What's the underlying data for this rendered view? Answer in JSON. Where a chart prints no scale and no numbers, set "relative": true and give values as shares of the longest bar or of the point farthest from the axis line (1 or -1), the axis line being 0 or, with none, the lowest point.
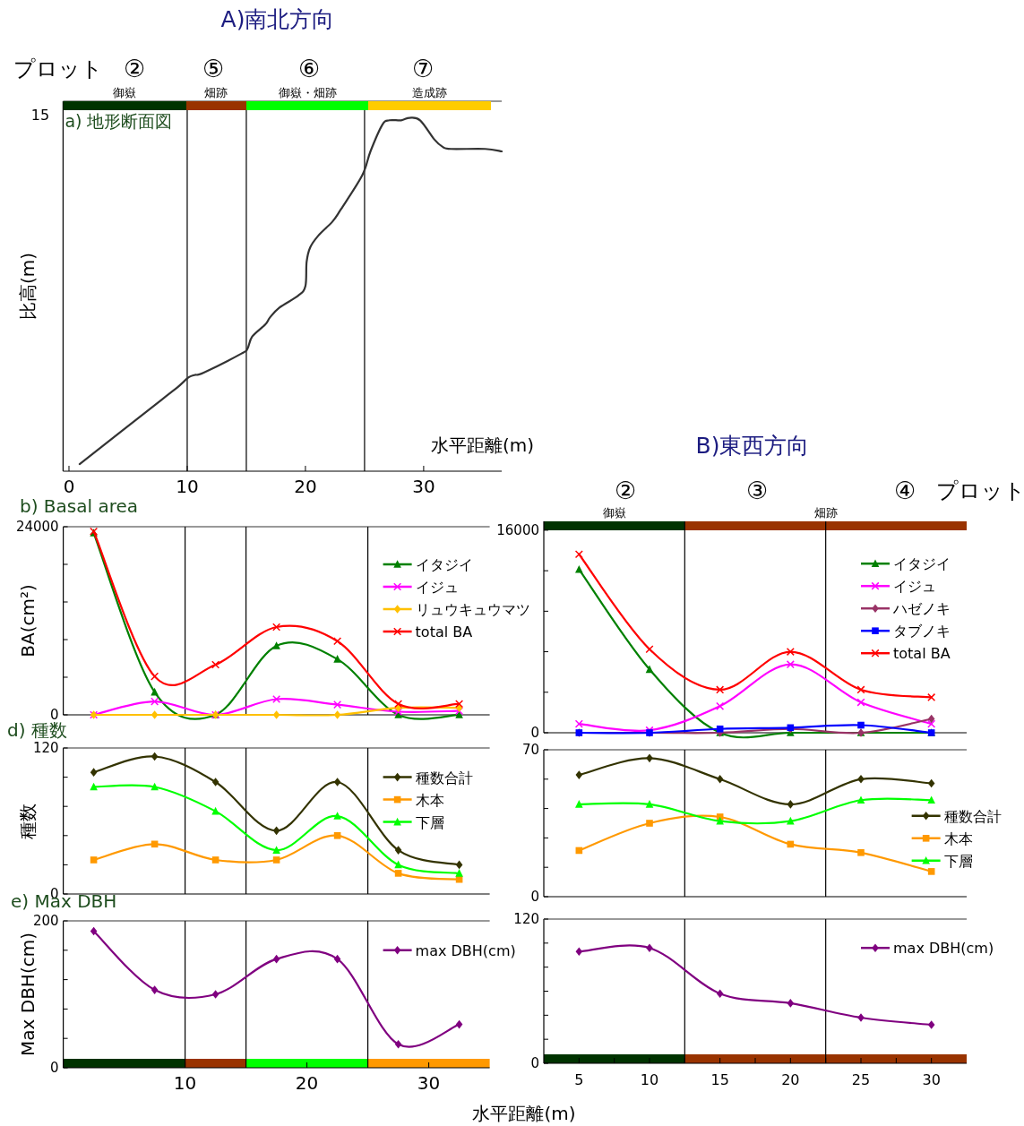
{
  "chart_data": [
    {
      "type": "line",
      "title": "A)南北方向",
      "subtitle": "a) 地形断面図",
      "xlabel": "水平距離(m)",
      "ylabel": "比高(m)",
      "x": [
        0.9,
        7.9,
        9.2,
        10.1,
        10.6,
        11.4,
        14.6,
        15.1,
        15.5,
        16.6,
        17.0,
        17.8,
        19.4,
        20.0,
        20.1,
        20.4,
        21.1,
        22.3,
        23.0,
        24.8,
        25.5,
        26.5,
        27.1,
        28.1,
        28.8,
        29.7,
        30.9,
        31.6,
        32.3,
        35.2,
        36.6
      ],
      "series": [
        {
          "color": "#333333",
          "values": [
            0.02,
            0.204,
            0.238,
            0.265,
            0.272,
            0.279,
            0.333,
            0.347,
            0.381,
            0.415,
            0.435,
            0.463,
            0.497,
            0.524,
            0.592,
            0.633,
            0.667,
            0.707,
            0.741,
            0.837,
            0.905,
            0.98,
            0.993,
            0.993,
            1,
            0.993,
            0.939,
            0.918,
            0.912,
            0.912,
            0.905
          ]
        }
      ],
      "relative": true,
      "xlim": [
        -0.5,
        36.6
      ],
      "xticks": [
        0,
        10,
        20,
        30
      ],
      "ref_lines": [
        {
          "axis": "x",
          "value": 10
        },
        {
          "axis": "x",
          "value": 15
        },
        {
          "axis": "x",
          "value": 25
        }
      ],
      "annotations": [
        "15",
        "プロット",
        "②",
        "⑤",
        "⑥",
        "⑦",
        "御嶽",
        "畑跡",
        "御嶽・畑跡",
        "造成跡"
      ]
    },
    {
      "type": "line",
      "title": "b) Basal area",
      "ylabel": "BA(cm²)",
      "x": [
        2.5,
        7.5,
        12.5,
        17.5,
        22.5,
        27.5,
        32.5
      ],
      "xlim": [
        0,
        35
      ],
      "ylim": [
        0,
        24000
      ],
      "yticks": [
        0,
        {
          "value": 4800,
          "label": null
        },
        {
          "value": 9600,
          "label": null
        },
        {
          "value": 14400,
          "label": null
        },
        {
          "value": 19200,
          "label": null
        },
        24000
      ],
      "tick_labels": "y",
      "legend": "top right",
      "ref_lines": [
        {
          "axis": "x",
          "value": 10
        },
        {
          "axis": "x",
          "value": 15
        },
        {
          "axis": "x",
          "value": 25
        }
      ],
      "series": [
        {
          "name": "イタジイ",
          "color": "#008000",
          "marker": "triangle",
          "values": [
            23200,
            2900,
            0,
            8800,
            7100,
            0,
            0
          ]
        },
        {
          "name": "イジュ",
          "color": "#ff00ff",
          "marker": "cross",
          "values": [
            0,
            1700,
            0,
            2000,
            1300,
            400,
            500
          ]
        },
        {
          "name": "リュウキュウマツ",
          "color": "#ffc000",
          "marker": "diamond",
          "values": [
            0,
            0,
            0,
            0,
            0,
            900,
            900
          ]
        },
        {
          "name": "total BA",
          "color": "#ff0000",
          "marker": "cross",
          "values": [
            23400,
            4900,
            6400,
            11200,
            9400,
            1400,
            1400
          ]
        }
      ]
    },
    {
      "type": "line",
      "title": "d) 種数",
      "ylabel": "種数",
      "x": [
        2.5,
        7.5,
        12.5,
        17.5,
        22.5,
        27.5,
        32.5
      ],
      "xlim": [
        0,
        35
      ],
      "ylim": [
        0,
        120
      ],
      "yticks": [
        0,
        {
          "value": 24,
          "label": null
        },
        {
          "value": 48,
          "label": null
        },
        {
          "value": 72,
          "label": null
        },
        {
          "value": 96,
          "label": null
        },
        120
      ],
      "tick_labels": "y",
      "legend": "top right",
      "ref_lines": [
        {
          "axis": "x",
          "value": 10
        },
        {
          "axis": "x",
          "value": 15
        },
        {
          "axis": "x",
          "value": 25
        }
      ],
      "series": [
        {
          "name": "種数合計",
          "color": "#333300",
          "marker": "diamond",
          "values": [
            100,
            113,
            92,
            52,
            92,
            36,
            24
          ]
        },
        {
          "name": "木本",
          "color": "#ff9900",
          "marker": "square",
          "values": [
            28,
            41,
            28,
            28,
            48,
            17,
            12
          ]
        },
        {
          "name": "下層",
          "color": "#00ff00",
          "marker": "triangle",
          "values": [
            88,
            88,
            68,
            36,
            64,
            24,
            17
          ]
        }
      ]
    },
    {
      "type": "line",
      "title": "e) Max DBH",
      "xlabel": "水平距離(m)",
      "ylabel": "Max DBH(cm)",
      "x": [
        2.5,
        7.5,
        12.5,
        17.5,
        22.5,
        27.5,
        32.5
      ],
      "xlim": [
        0,
        35
      ],
      "ylim": [
        0,
        200
      ],
      "xticks": [
        10,
        20,
        30
      ],
      "yticks": [
        0,
        {
          "value": 40,
          "label": null
        },
        {
          "value": 80,
          "label": null
        },
        {
          "value": 120,
          "label": null
        },
        {
          "value": 160,
          "label": null
        },
        200
      ],
      "legend": "top right",
      "bands": [
        {
          "axis": "x",
          "from": 0,
          "to": 10,
          "color": "#003300"
        },
        {
          "axis": "x",
          "from": 10,
          "to": 15,
          "color": "#993300"
        },
        {
          "axis": "x",
          "from": 15,
          "to": 25,
          "color": "#00ff00"
        },
        {
          "axis": "x",
          "from": 25,
          "to": 35,
          "color": "#ff9900"
        }
      ],
      "ref_lines": [
        {
          "axis": "x",
          "value": 10
        },
        {
          "axis": "x",
          "value": 15
        },
        {
          "axis": "x",
          "value": 25
        }
      ],
      "series": [
        {
          "name": "max DBH(cm)",
          "color": "#800080",
          "marker": "diamond",
          "values": [
            186,
            106,
            100,
            148,
            148,
            32,
            59
          ]
        }
      ]
    },
    {
      "type": "line",
      "title": "B)東西方向",
      "x": [
        5,
        10,
        15,
        20,
        25,
        30
      ],
      "xlim": [
        2.5,
        32.5
      ],
      "ylim": [
        0,
        16700
      ],
      "yticks": [
        0,
        {
          "value": 3200,
          "label": null
        },
        {
          "value": 6400,
          "label": null
        },
        {
          "value": 9600,
          "label": null
        },
        {
          "value": 12800,
          "label": null
        },
        16000
      ],
      "tick_labels": "y",
      "legend": "top right",
      "bands": [
        {
          "axis": "x",
          "from": 2.5,
          "to": 12.5,
          "label": "御嶽",
          "color": "#003300"
        },
        {
          "axis": "x",
          "from": 12.5,
          "to": 32.5,
          "label": "畑跡",
          "color": "#993300"
        }
      ],
      "ref_lines": [
        {
          "axis": "x",
          "value": 12.5
        },
        {
          "axis": "x",
          "value": 22.5
        }
      ],
      "annotations": [
        "②",
        "③",
        "④",
        "プロット"
      ],
      "series": [
        {
          "name": "イタジイ",
          "color": "#008000",
          "marker": "triangle",
          "values": [
            12900,
            5000,
            0,
            0,
            0,
            0
          ]
        },
        {
          "name": "イジュ",
          "color": "#ff00ff",
          "marker": "cross",
          "values": [
            700,
            200,
            2100,
            5400,
            2400,
            700
          ]
        },
        {
          "name": "ハゼノキ",
          "color": "#993366",
          "marker": "diamond",
          "values": [
            0,
            0,
            0,
            300,
            0,
            1100
          ]
        },
        {
          "name": "タブノキ",
          "color": "#0000ff",
          "marker": "square",
          "values": [
            0,
            0,
            300,
            400,
            600,
            0
          ]
        },
        {
          "name": "total BA",
          "color": "#ff0000",
          "marker": "cross",
          "values": [
            14100,
            6600,
            3400,
            6400,
            3400,
            2800
          ]
        }
      ]
    },
    {
      "type": "line",
      "x": [
        5,
        10,
        15,
        20,
        25,
        30
      ],
      "xlim": [
        2.5,
        32.5
      ],
      "ylim": [
        0,
        70
      ],
      "yticks": [
        0,
        {
          "value": 14,
          "label": null
        },
        {
          "value": 28,
          "label": null
        },
        {
          "value": 42,
          "label": null
        },
        {
          "value": 56,
          "label": null
        },
        70
      ],
      "tick_labels": "y",
      "legend": "right",
      "ref_lines": [
        {
          "axis": "x",
          "value": 12.5
        },
        {
          "axis": "x",
          "value": 22.5
        }
      ],
      "series": [
        {
          "name": "種数合計",
          "color": "#333300",
          "marker": "diamond",
          "values": [
            58,
            66,
            56,
            44,
            56,
            54
          ]
        },
        {
          "name": "木本",
          "color": "#ff9900",
          "marker": "square",
          "values": [
            22,
            35,
            38,
            25,
            21,
            12
          ]
        },
        {
          "name": "下層",
          "color": "#00ff00",
          "marker": "triangle",
          "values": [
            44,
            44,
            36,
            36,
            46,
            46
          ]
        }
      ]
    },
    {
      "type": "line",
      "x": [
        5,
        10,
        15,
        20,
        25,
        30
      ],
      "xlim": [
        2.5,
        32.5
      ],
      "ylim": [
        0,
        120
      ],
      "xticks": [
        5,
        {
          "value": 7.5,
          "label": null
        },
        10,
        {
          "value": 12.5,
          "label": null
        },
        15,
        {
          "value": 17.5,
          "label": null
        },
        20,
        {
          "value": 22.5,
          "label": null
        },
        25,
        {
          "value": 27.5,
          "label": null
        },
        30
      ],
      "yticks": [
        0,
        {
          "value": 20,
          "label": null
        },
        {
          "value": 40,
          "label": null
        },
        {
          "value": 60,
          "label": null
        },
        {
          "value": 80,
          "label": null
        },
        {
          "value": 100,
          "label": null
        },
        120
      ],
      "legend": "top right",
      "bands": [
        {
          "axis": "x",
          "from": 2.5,
          "to": 12.5,
          "color": "#003300"
        },
        {
          "axis": "x",
          "from": 12.5,
          "to": 32.5,
          "color": "#993300"
        }
      ],
      "ref_lines": [
        {
          "axis": "x",
          "value": 12.5
        },
        {
          "axis": "x",
          "value": 22.5
        }
      ],
      "series": [
        {
          "name": "max DBH(cm)",
          "color": "#800080",
          "marker": "diamond",
          "values": [
            93,
            96,
            58,
            50,
            38,
            32
          ]
        }
      ]
    }
  ]
}
